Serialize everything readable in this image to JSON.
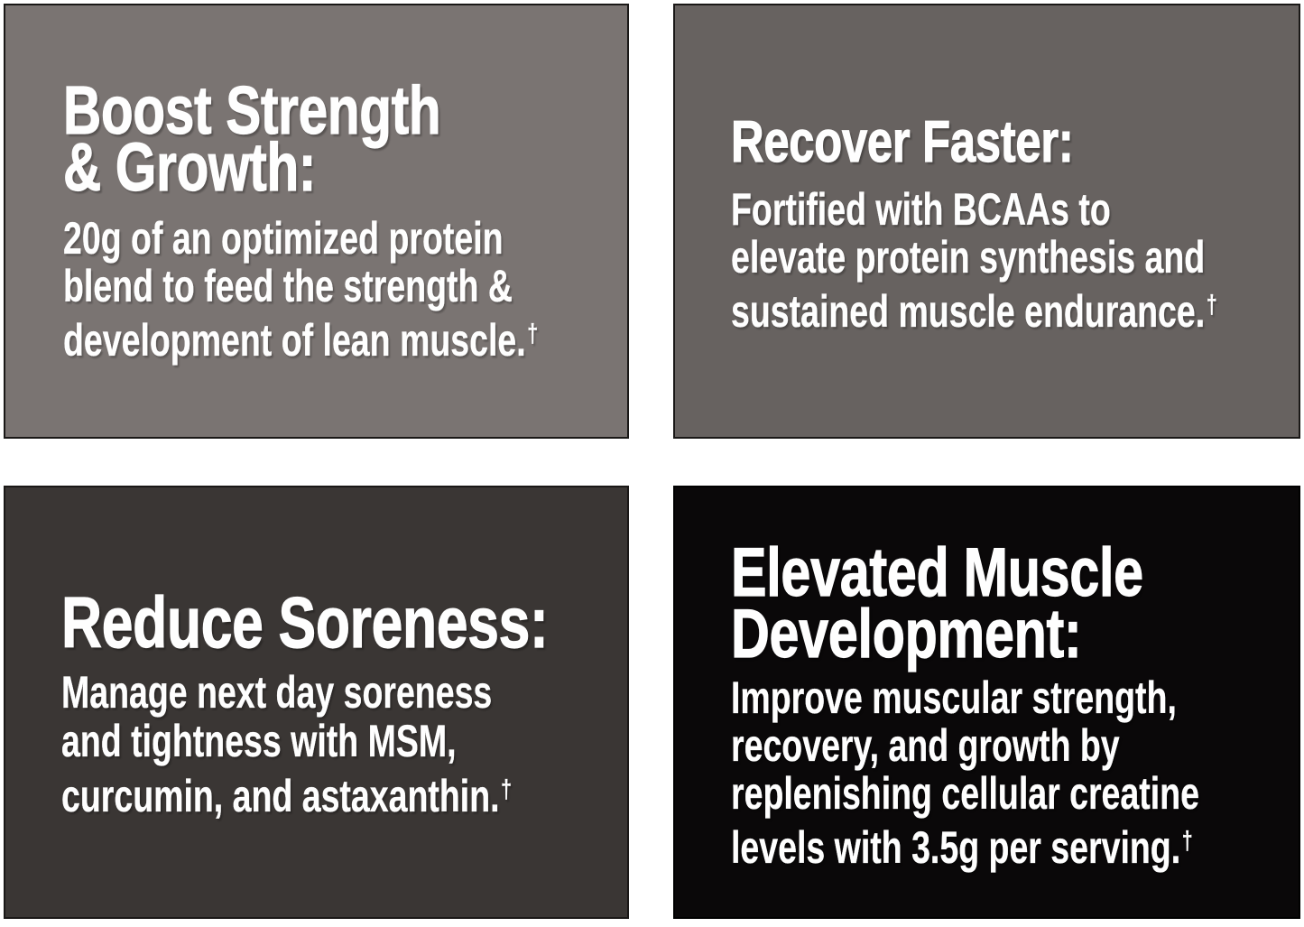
{
  "page": {
    "background": "#ffffff",
    "text_color": "#fefefe"
  },
  "panels": [
    {
      "id": "boost-strength-growth",
      "background": "#7a7472",
      "heading_lines": [
        "Boost Strength",
        "& Growth:"
      ],
      "body_lines": [
        "20g of an optimized protein",
        "blend to feed the strength &",
        "development of lean muscle."
      ],
      "footnote_marker": "†"
    },
    {
      "id": "recover-faster",
      "background": "#676260",
      "heading_lines": [
        "Recover Faster:"
      ],
      "body_lines": [
        "Fortified with BCAAs to",
        "elevate protein synthesis and",
        "sustained muscle endurance."
      ],
      "footnote_marker": "†"
    },
    {
      "id": "reduce-soreness",
      "background": "#3a3634",
      "heading_lines": [
        "Reduce Soreness:"
      ],
      "body_lines": [
        "Manage next day soreness",
        "and tightness with MSM,",
        "curcumin, and astaxanthin."
      ],
      "footnote_marker": "†"
    },
    {
      "id": "elevated-muscle-development",
      "background": "#0a0809",
      "heading_lines": [
        "Elevated Muscle",
        "Development:"
      ],
      "body_lines": [
        "Improve muscular strength,",
        "recovery, and growth by",
        "replenishing cellular creatine",
        "levels with 3.5g per serving."
      ],
      "footnote_marker": "†"
    }
  ]
}
